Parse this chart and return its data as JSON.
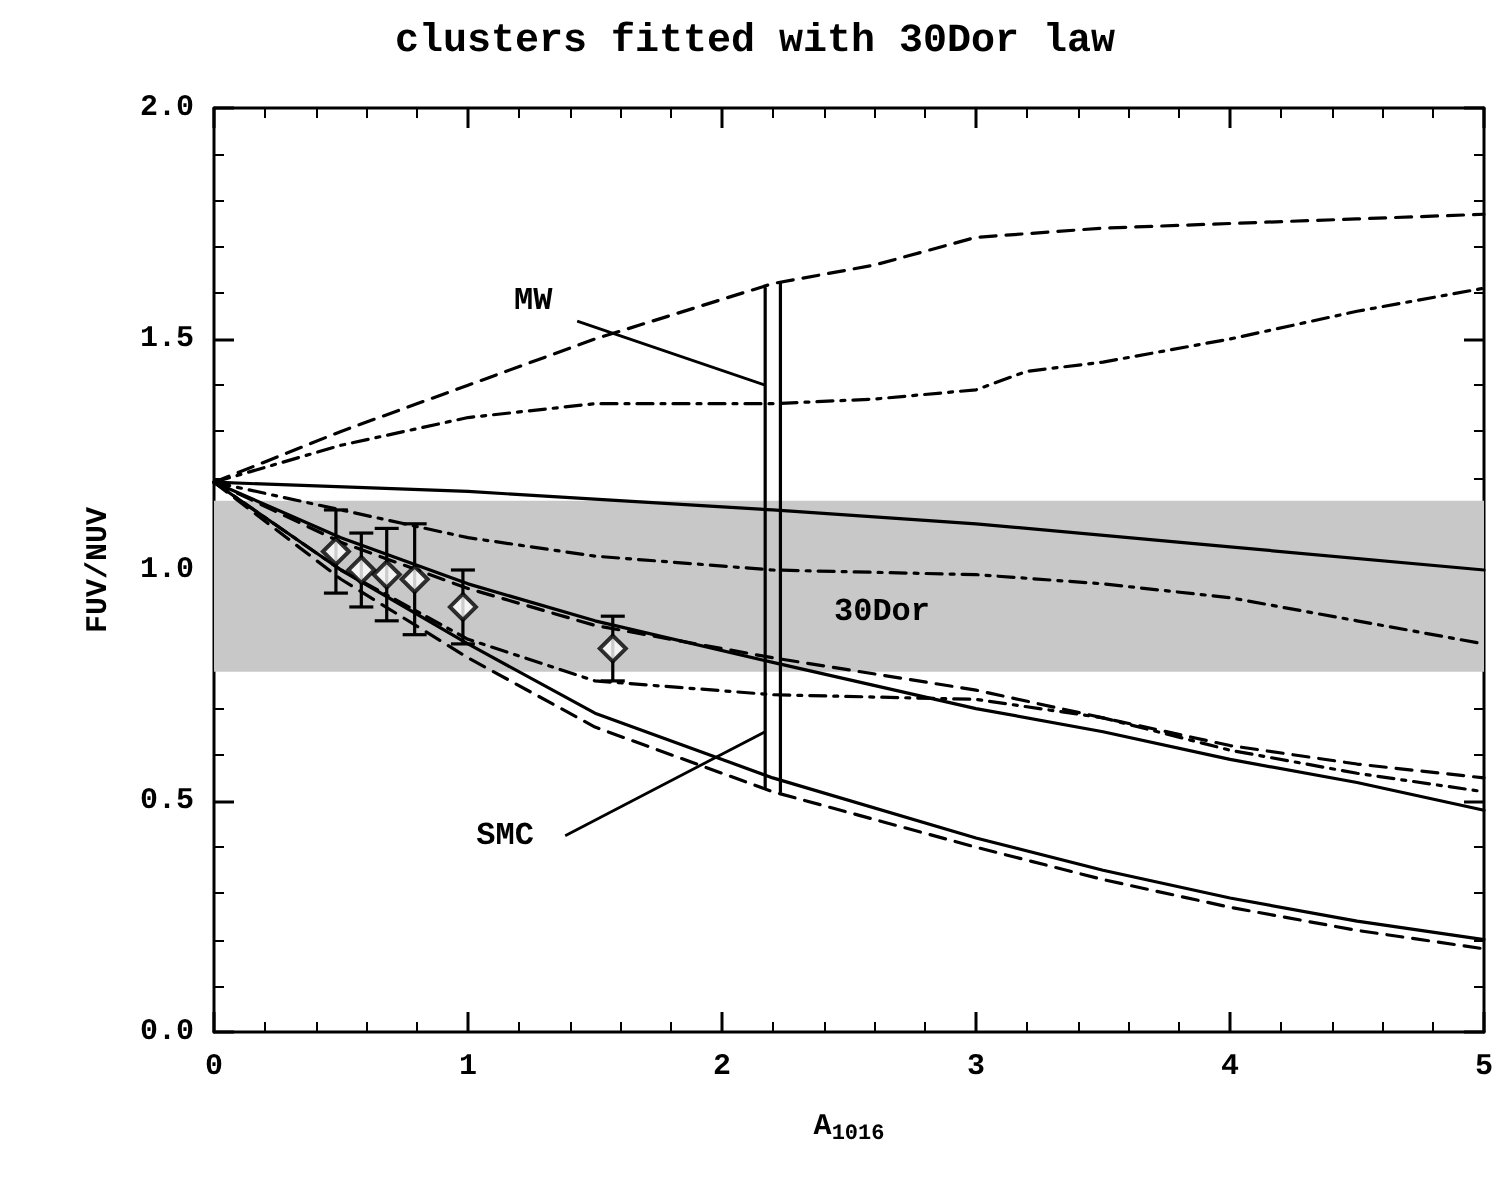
{
  "chart_data": {
    "type": "line",
    "title": "clusters fitted with 30Dor law",
    "xlabel": "A$_{1016}$",
    "ylabel": "FUV/NUV",
    "xlim": [
      0,
      5
    ],
    "xticks": [
      0,
      1,
      2,
      3,
      4,
      5
    ],
    "ylim": [
      0,
      2
    ],
    "yticks": [
      {
        "value": 0,
        "label": "0.0"
      },
      {
        "value": 0.5,
        "label": "0.5"
      },
      {
        "value": 1,
        "label": "1.0"
      },
      {
        "value": 1.5,
        "label": "1.5"
      },
      {
        "value": 2,
        "label": "2.0"
      }
    ],
    "grid": false,
    "series": [
      {
        "color": "#000000",
        "line_style": "dashed",
        "x": [
          0,
          0.5,
          1,
          1.5,
          2.2,
          2.6,
          3,
          3.5,
          4,
          4.5,
          5
        ],
        "values": [
          1.19,
          1.3,
          1.4,
          1.5,
          1.62,
          1.66,
          1.72,
          1.74,
          1.75,
          1.76,
          1.77
        ]
      },
      {
        "color": "#000000",
        "line_style": "dotted",
        "x": [
          0,
          0.5,
          1,
          1.5,
          2.2,
          2.6,
          3,
          3.2,
          3.5,
          4,
          4.5,
          5
        ],
        "values": [
          1.19,
          1.27,
          1.33,
          1.36,
          1.36,
          1.37,
          1.39,
          1.43,
          1.45,
          1.5,
          1.56,
          1.61
        ]
      },
      {
        "color": "#000000",
        "line_style": "solid",
        "x": [
          0,
          1,
          2.2,
          3,
          4,
          5
        ],
        "values": [
          1.19,
          1.17,
          1.13,
          1.1,
          1.05,
          1.0
        ]
      },
      {
        "color": "#000000",
        "line_style": "dotted",
        "x": [
          0,
          1,
          1.5,
          2.2,
          3,
          3.5,
          4,
          4.5,
          5
        ],
        "values": [
          1.19,
          1.07,
          1.03,
          1.0,
          0.99,
          0.97,
          0.94,
          0.89,
          0.84
        ]
      },
      {
        "color": "#000000",
        "line_style": "solid",
        "x": [
          0,
          0.5,
          1,
          1.5,
          2.2,
          3,
          3.5,
          4,
          4.5,
          5
        ],
        "values": [
          1.19,
          1.07,
          0.97,
          0.89,
          0.8,
          0.7,
          0.65,
          0.59,
          0.54,
          0.48
        ]
      },
      {
        "color": "#000000",
        "line_style": "dashed",
        "x": [
          0,
          0.5,
          1,
          1.5,
          2.2,
          3,
          3.5,
          4,
          4.5,
          5
        ],
        "values": [
          1.19,
          1.06,
          0.96,
          0.88,
          0.81,
          0.74,
          0.68,
          0.62,
          0.58,
          0.55
        ]
      },
      {
        "color": "#000000",
        "line_style": "dotted",
        "x": [
          0,
          0.5,
          1,
          1.5,
          2.2,
          3,
          3.5,
          4,
          4.5,
          5
        ],
        "values": [
          1.19,
          1.0,
          0.85,
          0.76,
          0.73,
          0.72,
          0.68,
          0.61,
          0.56,
          0.52
        ]
      },
      {
        "color": "#000000",
        "line_style": "solid",
        "x": [
          0,
          0.5,
          1,
          1.5,
          2.2,
          3,
          3.5,
          4,
          4.5,
          5
        ],
        "values": [
          1.19,
          1.0,
          0.84,
          0.69,
          0.55,
          0.42,
          0.35,
          0.29,
          0.24,
          0.2
        ]
      },
      {
        "color": "#000000",
        "line_style": "dashed",
        "x": [
          0,
          0.5,
          1,
          1.5,
          2.2,
          3,
          3.5,
          4,
          4.5,
          5
        ],
        "values": [
          1.19,
          0.98,
          0.81,
          0.66,
          0.52,
          0.4,
          0.33,
          0.27,
          0.22,
          0.18
        ]
      },
      {
        "color": "#000000",
        "line_style": "solid",
        "x": [
          2.17,
          2.17
        ],
        "values": [
          0.53,
          1.61
        ]
      },
      {
        "color": "#000000",
        "line_style": "solid",
        "x": [
          2.23,
          2.23
        ],
        "values": [
          0.52,
          1.62
        ]
      },
      {
        "type": "scatter",
        "color": "#000000",
        "marker": "diamond",
        "x": [
          0.48,
          0.58,
          0.68,
          0.79,
          0.98,
          1.57
        ],
        "values": [
          1.04,
          1.0,
          0.99,
          0.98,
          0.92,
          0.83
        ],
        "errors": [
          0.09,
          0.08,
          0.1,
          0.12,
          0.08,
          0.07
        ]
      }
    ],
    "bands": [
      {
        "axis": "y",
        "from": 0.78,
        "to": 1.15,
        "color": "#c8c8c8"
      }
    ],
    "annotations": [
      {
        "text": "MW",
        "x": 2.17,
        "y": 1.4
      },
      "30Dor",
      {
        "text": "SMC",
        "x": 2.17,
        "y": 0.65
      }
    ]
  }
}
